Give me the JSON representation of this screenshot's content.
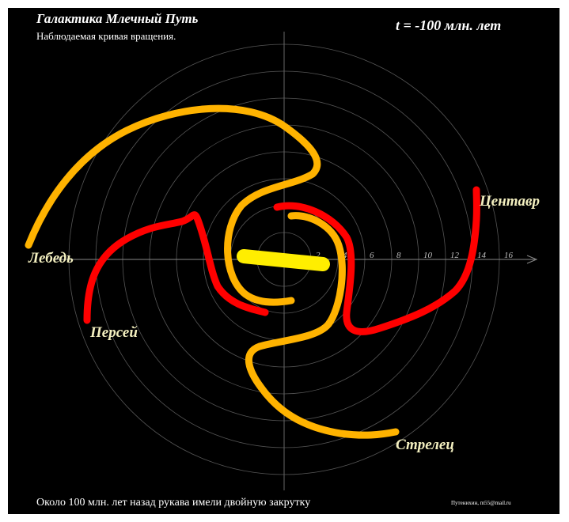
{
  "title": "Галактика Млечный Путь",
  "subtitle": "Наблюдаемая кривая вращения.",
  "time_label": "t = -100 млн. лет",
  "footnote": "Около 100 млн. лет назад рукава имели двойную закрутку",
  "author": "Путенихин, m55@mail.ru",
  "axis": {
    "ticks": [
      "2",
      "4",
      "6",
      "8",
      "10",
      "12",
      "14",
      "16"
    ]
  },
  "arms": [
    {
      "name": "Лебедь",
      "color": "#ffb300"
    },
    {
      "name": "Персей",
      "color": "#ff0000"
    },
    {
      "name": "Центавр",
      "color": "#ff0000"
    },
    {
      "name": "Стрелец",
      "color": "#ffb300"
    }
  ],
  "bar_color": "#ffee00",
  "grid_color": "#5a5a5a"
}
